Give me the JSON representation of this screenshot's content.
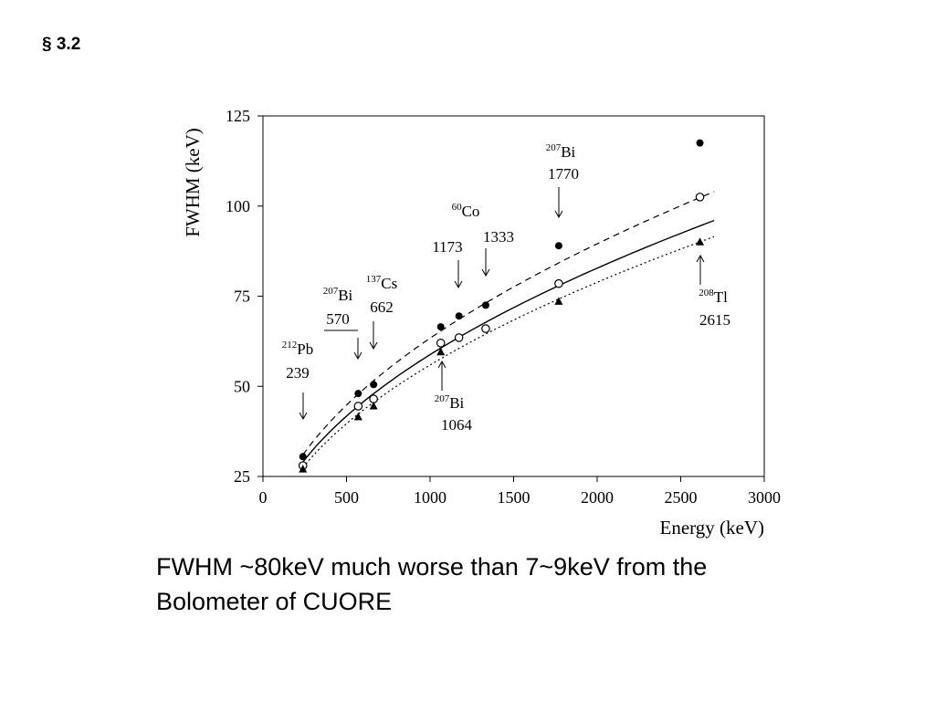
{
  "slide": {
    "section": "§ 3.2",
    "caption_line1": "FWHM ~80keV much worse than 7~9keV from the",
    "caption_line2": "Bolometer of CUORE"
  },
  "chart_data": {
    "type": "scatter",
    "xlabel": "Energy (keV)",
    "ylabel": "FWHM (keV)",
    "xlim": [
      0,
      3000
    ],
    "ylim": [
      25,
      125
    ],
    "xticks": [
      0,
      500,
      1000,
      1500,
      2000,
      2500,
      3000
    ],
    "yticks": [
      25,
      50,
      75,
      100,
      125
    ],
    "grid": false,
    "series": [
      {
        "marker": "filled-circle",
        "points": [
          {
            "x": 239,
            "y": 30.5
          },
          {
            "x": 570,
            "y": 48
          },
          {
            "x": 662,
            "y": 50.5
          },
          {
            "x": 1064,
            "y": 66.5
          },
          {
            "x": 1173,
            "y": 69.5
          },
          {
            "x": 1333,
            "y": 72.5
          },
          {
            "x": 1770,
            "y": 89
          },
          {
            "x": 2615,
            "y": 117.5
          }
        ]
      },
      {
        "marker": "open-circle",
        "points": [
          {
            "x": 239,
            "y": 28
          },
          {
            "x": 570,
            "y": 44.5
          },
          {
            "x": 662,
            "y": 46.5
          },
          {
            "x": 1064,
            "y": 62
          },
          {
            "x": 1173,
            "y": 63.5
          },
          {
            "x": 1333,
            "y": 66
          },
          {
            "x": 1770,
            "y": 78.5
          },
          {
            "x": 2615,
            "y": 102.5
          }
        ]
      },
      {
        "marker": "filled-triangle",
        "points": [
          {
            "x": 239,
            "y": 27
          },
          {
            "x": 570,
            "y": 41.5
          },
          {
            "x": 662,
            "y": 44.5
          },
          {
            "x": 1064,
            "y": 59.5
          },
          {
            "x": 1770,
            "y": 73.5
          },
          {
            "x": 2615,
            "y": 90
          }
        ]
      }
    ],
    "fits": [
      {
        "style": "dashed",
        "x_range": [
          239,
          2700
        ],
        "y_at": [
          31,
          104
        ]
      },
      {
        "style": "solid",
        "x_range": [
          239,
          2700
        ],
        "y_at": [
          29,
          96
        ]
      },
      {
        "style": "dotted",
        "x_range": [
          239,
          2700
        ],
        "y_at": [
          27.5,
          91.5
        ]
      }
    ],
    "annotations": [
      {
        "mass": "212",
        "element": "Pb",
        "energy": "239",
        "arrow": "down",
        "x": 239
      },
      {
        "mass": "207",
        "element": "Bi",
        "energy": "570",
        "arrow": "down",
        "x": 570
      },
      {
        "mass": "137",
        "element": "Cs",
        "energy": "662",
        "arrow": "down",
        "x": 662
      },
      {
        "mass": "207",
        "element": "Bi",
        "energy": "1064",
        "arrow": "up",
        "x": 1064
      },
      {
        "mass": "60",
        "element": "Co",
        "energy": "1173",
        "arrow": "down",
        "x": 1173
      },
      {
        "mass": "",
        "element": "",
        "energy": "1333",
        "arrow": "down",
        "x": 1333
      },
      {
        "mass": "207",
        "element": "Bi",
        "energy": "1770",
        "arrow": "down",
        "x": 1770
      },
      {
        "mass": "208",
        "element": "Tl",
        "energy": "2615",
        "arrow": "up",
        "x": 2615
      }
    ]
  }
}
